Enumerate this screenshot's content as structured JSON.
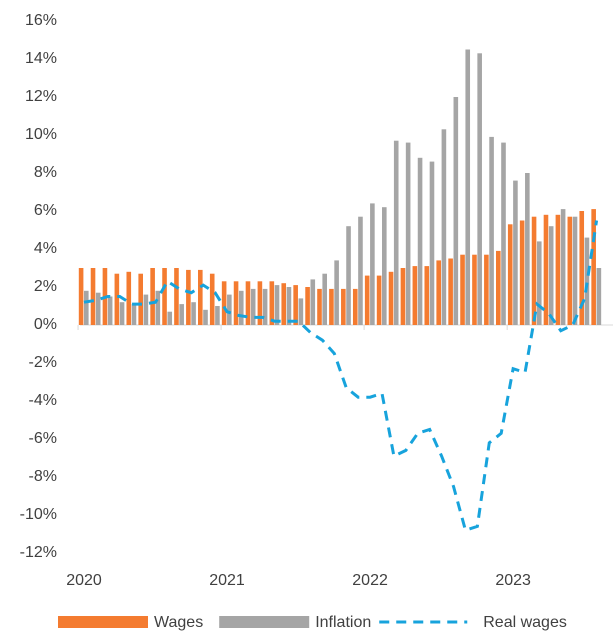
{
  "chart_data": {
    "type": "bar_line",
    "categories": [
      "2020",
      null,
      null,
      null,
      null,
      null,
      null,
      null,
      null,
      null,
      null,
      null,
      "2021",
      null,
      null,
      null,
      null,
      null,
      null,
      null,
      null,
      null,
      null,
      null,
      "2022",
      null,
      null,
      null,
      null,
      null,
      null,
      null,
      null,
      null,
      null,
      null,
      "2023",
      null,
      null,
      null,
      null,
      null,
      null,
      null
    ],
    "series": [
      {
        "name": "Wages",
        "color": "#f47b30",
        "kind": "bar",
        "values": [
          3.0,
          3.0,
          3.0,
          2.7,
          2.8,
          2.7,
          3.0,
          3.0,
          3.0,
          2.9,
          2.9,
          2.7,
          2.3,
          2.3,
          2.3,
          2.3,
          2.3,
          2.2,
          2.1,
          2.0,
          1.9,
          1.9,
          1.9,
          1.9,
          2.6,
          2.6,
          2.8,
          3.0,
          3.1,
          3.1,
          3.4,
          3.5,
          3.7,
          3.7,
          3.7,
          3.9,
          5.3,
          5.5,
          5.7,
          5.8,
          5.8,
          5.7,
          6.0,
          6.1
        ]
      },
      {
        "name": "Inflation",
        "color": "#a5a5a5",
        "kind": "bar",
        "values": [
          1.8,
          1.7,
          1.5,
          1.2,
          1.1,
          1.6,
          1.8,
          0.7,
          1.1,
          1.2,
          0.8,
          1.0,
          1.6,
          1.8,
          1.9,
          1.9,
          2.1,
          2.0,
          1.4,
          2.4,
          2.7,
          3.4,
          5.2,
          5.7,
          6.4,
          6.2,
          9.7,
          9.6,
          8.8,
          8.6,
          10.3,
          12.0,
          14.5,
          14.3,
          9.9,
          9.6,
          7.6,
          8.0,
          4.4,
          5.2,
          6.1,
          5.7,
          4.6,
          3.0
        ]
      },
      {
        "name": "Real wages",
        "color": "#17a3dc",
        "kind": "line",
        "values": [
          1.2,
          1.3,
          1.5,
          1.5,
          1.1,
          1.1,
          1.2,
          2.3,
          1.9,
          1.7,
          2.1,
          1.7,
          0.7,
          0.5,
          0.4,
          0.4,
          0.2,
          0.2,
          0.2,
          -0.4,
          -0.8,
          -1.5,
          -3.3,
          -3.8,
          -3.8,
          -3.6,
          -6.9,
          -6.6,
          -5.7,
          -5.5,
          -6.9,
          -8.5,
          -10.8,
          -10.6,
          -6.2,
          -5.7,
          -2.3,
          -2.5,
          1.1,
          0.6,
          -0.3,
          0.0,
          1.4,
          5.5
        ]
      }
    ],
    "ylim": [
      -12,
      16
    ],
    "yticks": [
      {
        "value": -12,
        "label": "-12%"
      },
      {
        "value": -10,
        "label": "-10%"
      },
      {
        "value": -8,
        "label": "-8%"
      },
      {
        "value": -6,
        "label": "-6%"
      },
      {
        "value": -4,
        "label": "-4%"
      },
      {
        "value": -2,
        "label": "-2%"
      },
      {
        "value": 0,
        "label": "0%"
      },
      {
        "value": 2,
        "label": "2%"
      },
      {
        "value": 4,
        "label": "4%"
      },
      {
        "value": 6,
        "label": "6%"
      },
      {
        "value": 8,
        "label": "8%"
      },
      {
        "value": 10,
        "label": "10%"
      },
      {
        "value": 12,
        "label": "12%"
      },
      {
        "value": 14,
        "label": "14%"
      },
      {
        "value": 16,
        "label": "16%"
      }
    ],
    "legend": "bottom"
  }
}
